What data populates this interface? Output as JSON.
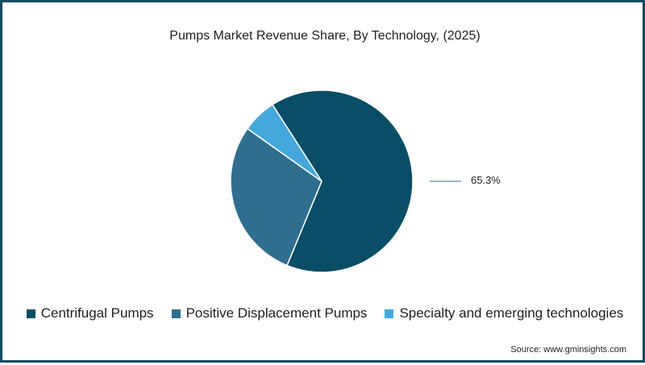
{
  "chart_data": {
    "type": "pie",
    "title": "Pumps Market Revenue Share, By Technology, (2025)",
    "categories": [
      "Centrifugal Pumps",
      "Positive Displacement Pumps",
      "Specialty and emerging technologies"
    ],
    "values": [
      65.3,
      28.6,
      6.1
    ],
    "colors": [
      "#0a4d66",
      "#2f6e8f",
      "#45a8dc"
    ],
    "data_labels": [
      {
        "category": "Centrifugal Pumps",
        "text": "65.3%"
      }
    ],
    "legend_position": "bottom",
    "start_angle_deg": 327.3
  },
  "chart": {
    "title": "Pumps Market Revenue Share, By Technology, (2025)",
    "label": "65.3%",
    "legend": [
      {
        "label": "Centrifugal Pumps",
        "color": "#0a4d66"
      },
      {
        "label": "Positive Displacement Pumps",
        "color": "#2f6e8f"
      },
      {
        "label": "Specialty and emerging technologies",
        "color": "#45a8dc"
      }
    ],
    "source": "Source: www.gminsights.com"
  },
  "frame_color": "#0b4a63"
}
